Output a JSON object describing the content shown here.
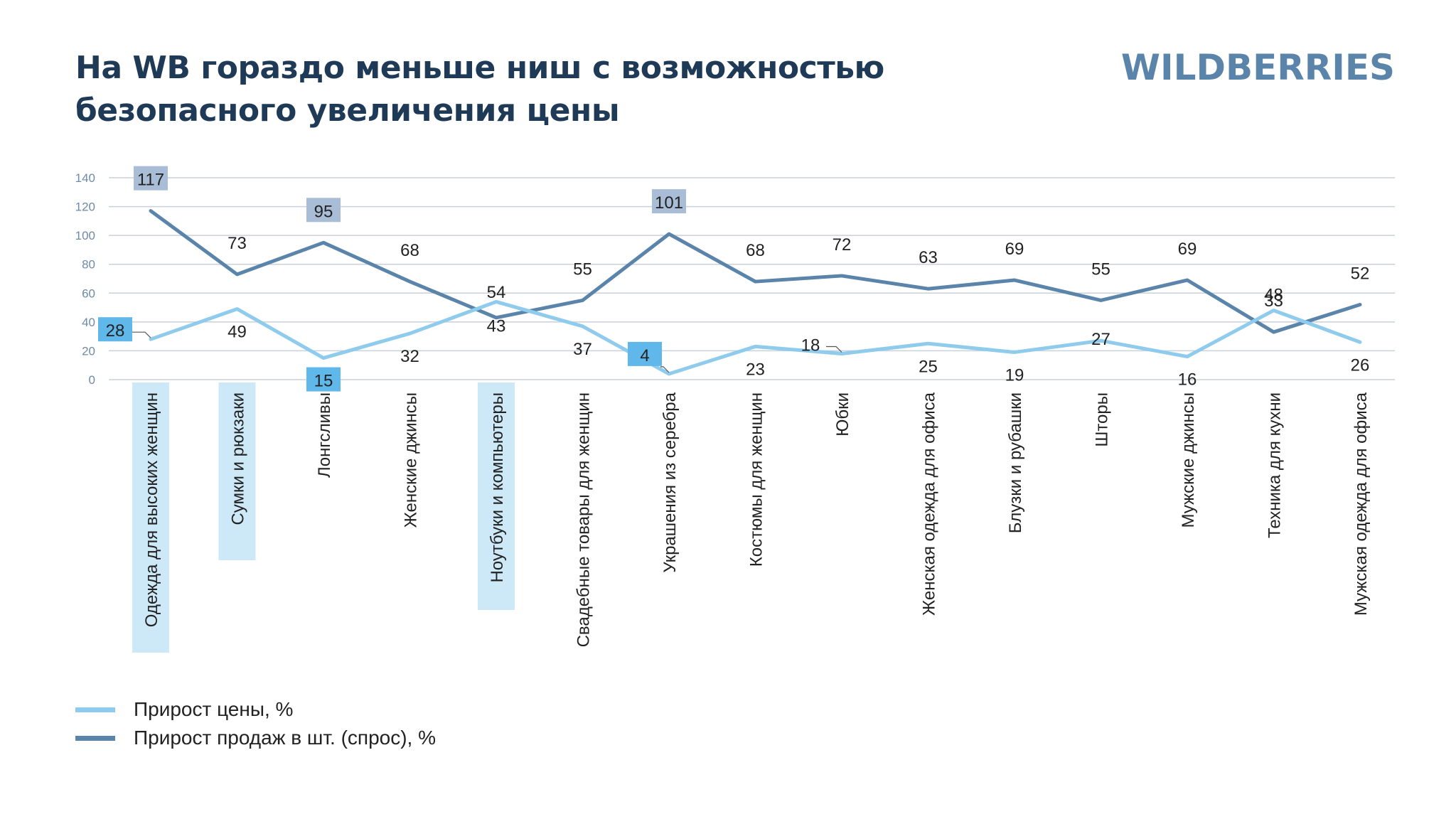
{
  "header": {
    "title_line1": "На WB гораздо меньше ниш с возможностью",
    "title_line2": "безопасного увеличения цены",
    "logo": "WILDBERRIES"
  },
  "colors": {
    "price": "#8ecbec",
    "demand": "#5b84aa",
    "grid": "#c9d1da",
    "highlight_category": "#cde9f8",
    "badge_dark": "#a9bdd6",
    "badge_light": "#5fb7ea",
    "title": "#1f3a56"
  },
  "chart_data": {
    "type": "line",
    "title": "",
    "xlabel": "",
    "ylabel": "",
    "ylim": [
      0,
      140
    ],
    "yticks": [
      "0",
      "20",
      "40",
      "60",
      "80",
      "100",
      "120",
      "140"
    ],
    "categories": [
      "Одежда для высоких женщин",
      "Сумки и рюкзаки",
      "Лонгсливы",
      "Женские джинсы",
      "Ноутбуки и компьютеры",
      "Свадебные товары для женщин",
      "Украшения из серебра",
      "Костюмы для женщин",
      "Юбки",
      "Женская одежда для офиса",
      "Блузки и рубашки",
      "Шторы",
      "Мужские джинсы",
      "Техника для кухни",
      "Мужская одежда для офиса"
    ],
    "highlighted_categories": [
      0,
      1,
      4
    ],
    "series": [
      {
        "name": "Прирост продаж в шт. (спрос), %",
        "key": "demand",
        "values": [
          117,
          73,
          95,
          68,
          43,
          55,
          101,
          68,
          72,
          63,
          69,
          55,
          69,
          33,
          52
        ],
        "badges": [
          0,
          2,
          6
        ]
      },
      {
        "name": "Прирост цены, %",
        "key": "price",
        "values": [
          28,
          49,
          15,
          32,
          54,
          37,
          4,
          23,
          18,
          25,
          19,
          27,
          16,
          48,
          26
        ],
        "badges": [
          0,
          2,
          6
        ]
      }
    ]
  },
  "legend": [
    {
      "label": "Прирост цены, %",
      "key": "price"
    },
    {
      "label": "Прирост продаж в шт. (спрос), %",
      "key": "demand"
    }
  ]
}
